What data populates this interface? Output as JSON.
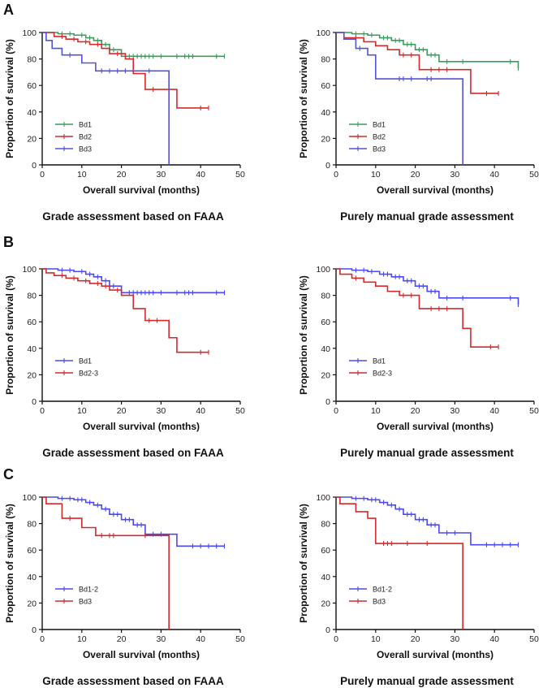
{
  "panel_letters": [
    "A",
    "B",
    "C"
  ],
  "colors": {
    "green": "#3a9d5d",
    "red": "#d42a2a",
    "blue": "#5353d6",
    "axis": "#111111"
  },
  "chart_data": [
    {
      "type": "line",
      "subtype": "kaplan-meier",
      "panel": "A",
      "caption": "Grade assessment based on FAAA",
      "xlabel": "Overall survival (months)",
      "ylabel": "Proportion of survival (%)",
      "xlim": [
        0,
        50
      ],
      "ylim": [
        0,
        100
      ],
      "xticks": [
        "0",
        "10",
        "20",
        "30",
        "40",
        "50"
      ],
      "yticks": [
        "0",
        "20",
        "40",
        "60",
        "80",
        "100"
      ],
      "legend_position": "lower-left",
      "series": [
        {
          "name": "Bd1",
          "color": "#3a9d5d",
          "x": [
            0,
            4,
            8,
            11,
            13,
            15,
            17,
            20,
            46
          ],
          "y": [
            100,
            99,
            98,
            96,
            94,
            91,
            87,
            82,
            82
          ],
          "censor": [
            5,
            7,
            10,
            12,
            14,
            16,
            18,
            22,
            23,
            24,
            25,
            26,
            27,
            28,
            30,
            34,
            36,
            37,
            38,
            44,
            46
          ]
        },
        {
          "name": "Bd2",
          "color": "#d42a2a",
          "x": [
            0,
            3,
            6,
            9,
            12,
            15,
            17,
            21,
            23,
            26,
            32,
            34,
            42
          ],
          "y": [
            100,
            97,
            95,
            93,
            91,
            88,
            84,
            80,
            69,
            57,
            57,
            43,
            43
          ],
          "censor": [
            5,
            8,
            11,
            14,
            19,
            28,
            40,
            42
          ]
        },
        {
          "name": "Bd3",
          "color": "#5353d6",
          "x": [
            0,
            1,
            2.5,
            5,
            10,
            13.5,
            32,
            32
          ],
          "y": [
            100,
            94,
            88,
            83,
            77,
            71,
            71,
            0
          ],
          "censor": [
            7,
            15,
            17,
            19,
            21,
            27
          ]
        }
      ]
    },
    {
      "type": "line",
      "subtype": "kaplan-meier",
      "panel": "A",
      "caption": "Purely manual grade assessment",
      "xlabel": "Overall survival (months)",
      "ylabel": "Proportion of survival (%)",
      "xlim": [
        0,
        50
      ],
      "ylim": [
        0,
        100
      ],
      "xticks": [
        "0",
        "10",
        "20",
        "30",
        "40",
        "50"
      ],
      "yticks": [
        "0",
        "20",
        "40",
        "60",
        "80",
        "100"
      ],
      "legend_position": "lower-left",
      "series": [
        {
          "name": "Bd1",
          "color": "#3a9d5d",
          "x": [
            0,
            4,
            8,
            11,
            14,
            17,
            20,
            23,
            26,
            46
          ],
          "y": [
            100,
            99,
            98,
            96,
            94,
            91,
            87,
            83,
            78,
            73
          ],
          "censor": [
            5,
            7,
            9,
            12,
            13,
            15,
            16,
            18,
            19,
            21,
            22,
            24,
            25,
            28,
            32,
            44,
            46
          ]
        },
        {
          "name": "Bd2",
          "color": "#d42a2a",
          "x": [
            0,
            2,
            7,
            10,
            13,
            16,
            21,
            32,
            34,
            41
          ],
          "y": [
            100,
            96,
            93,
            90,
            87,
            83,
            72,
            72,
            54,
            54
          ],
          "censor": [
            5,
            17,
            19,
            24,
            26,
            28,
            38,
            41
          ]
        },
        {
          "name": "Bd3",
          "color": "#5353d6",
          "x": [
            0,
            2,
            5,
            8,
            10,
            32,
            32
          ],
          "y": [
            100,
            95,
            88,
            83,
            65,
            65,
            0
          ],
          "censor": [
            6,
            16,
            17,
            19,
            23,
            24
          ]
        }
      ]
    },
    {
      "type": "line",
      "subtype": "kaplan-meier",
      "panel": "B",
      "caption": "Grade assessment based on FAAA",
      "xlabel": "Overall survival (months)",
      "ylabel": "Proportion of survival (%)",
      "xlim": [
        0,
        50
      ],
      "ylim": [
        0,
        100
      ],
      "xticks": [
        "0",
        "10",
        "20",
        "30",
        "40",
        "50"
      ],
      "yticks": [
        "0",
        "20",
        "40",
        "60",
        "80",
        "100"
      ],
      "legend_position": "lower-left",
      "series": [
        {
          "name": "Bd1",
          "color": "#4a4af0",
          "x": [
            0,
            4,
            8,
            11,
            13,
            15,
            17,
            20,
            46
          ],
          "y": [
            100,
            99,
            98,
            96,
            94,
            91,
            87,
            82,
            82
          ],
          "censor": [
            5,
            7,
            10,
            12,
            14,
            16,
            18,
            22,
            23,
            24,
            25,
            26,
            27,
            28,
            30,
            34,
            36,
            37,
            38,
            44,
            46
          ]
        },
        {
          "name": "Bd2-3",
          "color": "#d42a2a",
          "x": [
            0,
            1,
            3,
            6,
            9,
            12,
            15,
            17,
            20,
            23,
            26,
            32,
            34,
            42
          ],
          "y": [
            100,
            97,
            95,
            93,
            91,
            89,
            87,
            84,
            80,
            70,
            61,
            48,
            37,
            37
          ],
          "censor": [
            5,
            8,
            11,
            14,
            16,
            19,
            27,
            29,
            40,
            42
          ]
        }
      ]
    },
    {
      "type": "line",
      "subtype": "kaplan-meier",
      "panel": "B",
      "caption": "Purely manual grade assessment",
      "xlabel": "Overall survival (months)",
      "ylabel": "Proportion of survival (%)",
      "xlim": [
        0,
        50
      ],
      "ylim": [
        0,
        100
      ],
      "xticks": [
        "0",
        "10",
        "20",
        "30",
        "40",
        "50"
      ],
      "yticks": [
        "0",
        "20",
        "40",
        "60",
        "80",
        "100"
      ],
      "legend_position": "lower-left",
      "series": [
        {
          "name": "Bd1",
          "color": "#4a4af0",
          "x": [
            0,
            4,
            8,
            11,
            14,
            17,
            20,
            23,
            26,
            46
          ],
          "y": [
            100,
            99,
            98,
            96,
            94,
            91,
            87,
            83,
            78,
            73
          ],
          "censor": [
            5,
            7,
            9,
            12,
            13,
            15,
            16,
            18,
            19,
            21,
            22,
            24,
            25,
            28,
            32,
            44,
            46
          ]
        },
        {
          "name": "Bd2-3",
          "color": "#d42a2a",
          "x": [
            0,
            1,
            4,
            7,
            10,
            13,
            16,
            21,
            32,
            34,
            41
          ],
          "y": [
            100,
            96,
            93,
            90,
            87,
            83,
            80,
            70,
            55,
            41,
            41
          ],
          "censor": [
            5,
            17,
            19,
            24,
            26,
            28,
            39,
            41
          ]
        }
      ]
    },
    {
      "type": "line",
      "subtype": "kaplan-meier",
      "panel": "C",
      "caption": "Grade assessment based on FAAA",
      "xlabel": "Overall survival (months)",
      "ylabel": "Proportion of survival (%)",
      "xlim": [
        0,
        50
      ],
      "ylim": [
        0,
        100
      ],
      "xticks": [
        "0",
        "10",
        "20",
        "30",
        "40",
        "50"
      ],
      "yticks": [
        "0",
        "20",
        "40",
        "60",
        "80",
        "100"
      ],
      "legend_position": "lower-left",
      "series": [
        {
          "name": "Bd1-2",
          "color": "#4a4af0",
          "x": [
            0,
            4,
            8,
            11,
            13,
            15,
            17,
            20,
            23,
            26,
            34,
            46
          ],
          "y": [
            100,
            99,
            98,
            96,
            94,
            91,
            87,
            83,
            79,
            72,
            63,
            63
          ],
          "censor": [
            5,
            7,
            9,
            10,
            12,
            14,
            16,
            18,
            19,
            21,
            22,
            24,
            25,
            28,
            30,
            38,
            40,
            42,
            44,
            46
          ]
        },
        {
          "name": "Bd3",
          "color": "#d42a2a",
          "x": [
            0,
            1,
            5,
            10,
            13.5,
            32,
            32
          ],
          "y": [
            100,
            95,
            84,
            77,
            71,
            71,
            0
          ],
          "censor": [
            7,
            15,
            17,
            18,
            26
          ]
        }
      ]
    },
    {
      "type": "line",
      "subtype": "kaplan-meier",
      "panel": "C",
      "caption": "Purely manual grade assessment",
      "xlabel": "Overall survival (months)",
      "ylabel": "Proportion of survival (%)",
      "xlim": [
        0,
        50
      ],
      "ylim": [
        0,
        100
      ],
      "xticks": [
        "0",
        "10",
        "20",
        "30",
        "40",
        "50"
      ],
      "yticks": [
        "0",
        "20",
        "40",
        "60",
        "80",
        "100"
      ],
      "legend_position": "lower-left",
      "series": [
        {
          "name": "Bd1-2",
          "color": "#4a4af0",
          "x": [
            0,
            4,
            8,
            11,
            13,
            15,
            17,
            20,
            23,
            26,
            34,
            46
          ],
          "y": [
            100,
            99,
            98,
            96,
            94,
            91,
            87,
            83,
            79,
            73,
            64,
            64
          ],
          "censor": [
            5,
            7,
            9,
            10,
            12,
            14,
            16,
            18,
            19,
            21,
            22,
            24,
            25,
            28,
            30,
            38,
            40,
            42,
            44,
            46
          ]
        },
        {
          "name": "Bd3",
          "color": "#d42a2a",
          "x": [
            0,
            1,
            5,
            8,
            10,
            32,
            32
          ],
          "y": [
            100,
            95,
            89,
            84,
            65,
            65,
            0
          ],
          "censor": [
            12,
            13,
            14,
            18,
            23
          ]
        }
      ]
    }
  ]
}
